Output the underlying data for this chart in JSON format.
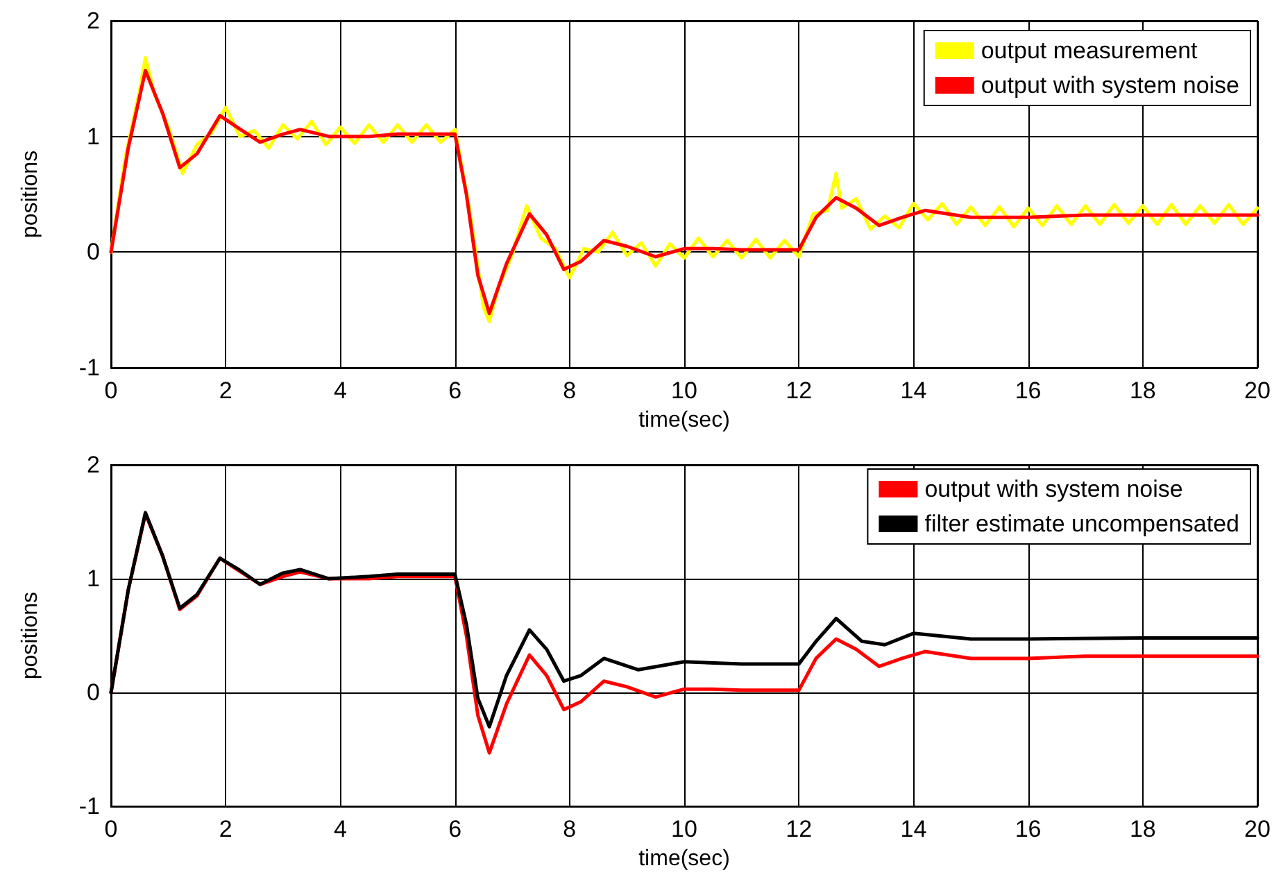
{
  "chart_data": [
    {
      "type": "line",
      "xlabel": "time(sec)",
      "ylabel": "positions",
      "xlim": [
        0,
        20
      ],
      "xticks": [
        0,
        2,
        4,
        6,
        8,
        10,
        12,
        14,
        16,
        18,
        20
      ],
      "ylim": [
        -1,
        2
      ],
      "yticks": [
        -1,
        0,
        1,
        2
      ],
      "grid": true,
      "legend": "top right",
      "marker": "none",
      "line_style": "solid",
      "series": [
        {
          "name": "output measurement",
          "color": "#ffff00",
          "x": [
            0,
            0.25,
            0.5,
            0.6,
            0.75,
            1.0,
            1.25,
            1.5,
            1.75,
            2.0,
            2.25,
            2.5,
            2.75,
            3.0,
            3.25,
            3.5,
            3.75,
            4.0,
            4.25,
            4.5,
            4.75,
            5.0,
            5.25,
            5.5,
            5.75,
            6.0,
            6.25,
            6.5,
            6.6,
            6.75,
            7.0,
            7.25,
            7.5,
            7.75,
            8.0,
            8.25,
            8.5,
            8.75,
            9.0,
            9.25,
            9.5,
            9.75,
            10.0,
            10.25,
            10.5,
            10.75,
            11.0,
            11.25,
            11.5,
            11.75,
            12.0,
            12.25,
            12.5,
            12.65,
            12.75,
            13.0,
            13.25,
            13.5,
            13.75,
            14.0,
            14.25,
            14.5,
            14.75,
            15.0,
            15.25,
            15.5,
            15.75,
            16.0,
            16.25,
            16.5,
            16.75,
            17.0,
            17.25,
            17.5,
            17.75,
            18.0,
            18.25,
            18.5,
            18.75,
            19.0,
            19.25,
            19.5,
            19.75,
            20.0
          ],
          "values": [
            0,
            0.82,
            1.4,
            1.68,
            1.38,
            1.08,
            0.68,
            0.93,
            1.03,
            1.25,
            1.0,
            1.05,
            0.9,
            1.1,
            0.98,
            1.13,
            0.93,
            1.08,
            0.94,
            1.1,
            0.95,
            1.1,
            0.95,
            1.1,
            0.95,
            1.06,
            0.38,
            -0.48,
            -0.6,
            -0.32,
            -0.02,
            0.4,
            0.12,
            0.03,
            -0.22,
            0.03,
            0.0,
            0.17,
            -0.03,
            0.08,
            -0.12,
            0.07,
            -0.05,
            0.12,
            -0.04,
            0.1,
            -0.05,
            0.11,
            -0.05,
            0.1,
            -0.04,
            0.33,
            0.36,
            0.68,
            0.38,
            0.46,
            0.2,
            0.31,
            0.21,
            0.42,
            0.28,
            0.42,
            0.24,
            0.39,
            0.23,
            0.39,
            0.22,
            0.38,
            0.23,
            0.4,
            0.24,
            0.4,
            0.24,
            0.41,
            0.25,
            0.4,
            0.24,
            0.41,
            0.24,
            0.4,
            0.25,
            0.41,
            0.24,
            0.38
          ]
        },
        {
          "name": "output with system noise",
          "color": "#ff0000",
          "x": [
            0,
            0.3,
            0.6,
            0.9,
            1.2,
            1.5,
            1.9,
            2.2,
            2.6,
            3.0,
            3.3,
            3.8,
            4.5,
            5.0,
            6.0,
            6.2,
            6.4,
            6.6,
            6.9,
            7.3,
            7.6,
            7.9,
            8.2,
            8.6,
            9.0,
            9.5,
            10.0,
            10.5,
            11.0,
            12.0,
            12.3,
            12.65,
            13.0,
            13.4,
            13.8,
            14.2,
            15.0,
            16.0,
            17.0,
            18.0,
            20.0
          ],
          "values": [
            0,
            0.9,
            1.57,
            1.2,
            0.73,
            0.85,
            1.18,
            1.08,
            0.95,
            1.02,
            1.06,
            1.0,
            1.0,
            1.02,
            1.02,
            0.5,
            -0.2,
            -0.53,
            -0.1,
            0.33,
            0.15,
            -0.15,
            -0.08,
            0.1,
            0.05,
            -0.04,
            0.03,
            0.03,
            0.02,
            0.02,
            0.3,
            0.47,
            0.38,
            0.23,
            0.3,
            0.36,
            0.3,
            0.3,
            0.32,
            0.32,
            0.32
          ]
        }
      ]
    },
    {
      "type": "line",
      "xlabel": "time(sec)",
      "ylabel": "positions",
      "xlim": [
        0,
        20
      ],
      "xticks": [
        0,
        2,
        4,
        6,
        8,
        10,
        12,
        14,
        16,
        18,
        20
      ],
      "ylim": [
        -1,
        2
      ],
      "yticks": [
        -1,
        0,
        1,
        2
      ],
      "grid": true,
      "legend": "top right",
      "marker": "none",
      "line_style": "solid",
      "series": [
        {
          "name": "output with system noise",
          "color": "#ff0000",
          "x": [
            0,
            0.3,
            0.6,
            0.9,
            1.2,
            1.5,
            1.9,
            2.2,
            2.6,
            3.0,
            3.3,
            3.8,
            4.5,
            5.0,
            6.0,
            6.2,
            6.4,
            6.6,
            6.9,
            7.3,
            7.6,
            7.9,
            8.2,
            8.6,
            9.0,
            9.5,
            10.0,
            10.5,
            11.0,
            12.0,
            12.3,
            12.65,
            13.0,
            13.4,
            13.8,
            14.2,
            15.0,
            16.0,
            17.0,
            18.0,
            20.0
          ],
          "values": [
            0,
            0.9,
            1.57,
            1.2,
            0.73,
            0.85,
            1.18,
            1.08,
            0.95,
            1.02,
            1.06,
            1.0,
            1.0,
            1.02,
            1.02,
            0.5,
            -0.2,
            -0.53,
            -0.1,
            0.33,
            0.15,
            -0.15,
            -0.08,
            0.1,
            0.05,
            -0.04,
            0.03,
            0.03,
            0.02,
            0.02,
            0.3,
            0.47,
            0.38,
            0.23,
            0.3,
            0.36,
            0.3,
            0.3,
            0.32,
            0.32,
            0.32
          ]
        },
        {
          "name": "filter estimate uncompensated",
          "color": "#000000",
          "x": [
            0,
            0.3,
            0.6,
            0.9,
            1.2,
            1.5,
            1.9,
            2.2,
            2.6,
            3.0,
            3.3,
            3.8,
            4.5,
            5.0,
            6.0,
            6.2,
            6.4,
            6.6,
            6.9,
            7.3,
            7.6,
            7.9,
            8.2,
            8.6,
            9.2,
            10.0,
            11.0,
            12.0,
            12.3,
            12.65,
            13.1,
            13.5,
            14.0,
            15.0,
            16.0,
            18.0,
            20.0
          ],
          "values": [
            0,
            0.9,
            1.58,
            1.2,
            0.74,
            0.86,
            1.18,
            1.09,
            0.95,
            1.05,
            1.08,
            1.0,
            1.02,
            1.04,
            1.04,
            0.6,
            -0.05,
            -0.3,
            0.15,
            0.55,
            0.38,
            0.1,
            0.15,
            0.3,
            0.2,
            0.27,
            0.25,
            0.25,
            0.45,
            0.65,
            0.45,
            0.42,
            0.52,
            0.47,
            0.47,
            0.48,
            0.48
          ]
        }
      ]
    }
  ]
}
